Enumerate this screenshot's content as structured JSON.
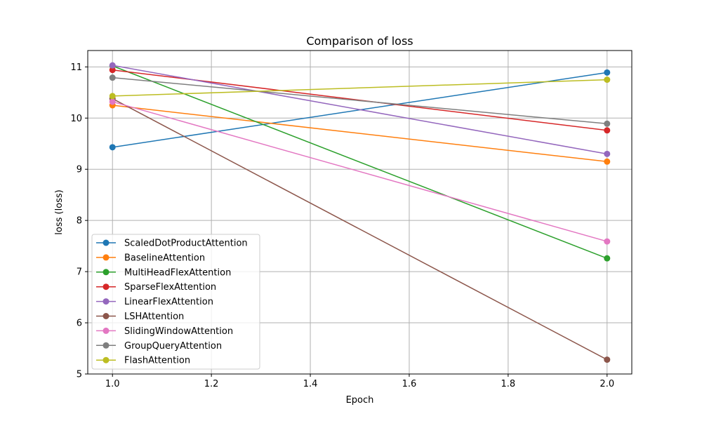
{
  "chart_data": {
    "type": "line",
    "title": "Comparison of loss",
    "xlabel": "Epoch",
    "ylabel": "loss (loss)",
    "x": [
      1.0,
      2.0
    ],
    "xlim": [
      0.95,
      2.05
    ],
    "ylim": [
      5.0,
      11.32
    ],
    "xticks": [
      1.0,
      1.2,
      1.4,
      1.6,
      1.8,
      2.0
    ],
    "xtick_labels": [
      "1.0",
      "1.2",
      "1.4",
      "1.6",
      "1.8",
      "2.0"
    ],
    "yticks": [
      5,
      6,
      7,
      8,
      9,
      10,
      11
    ],
    "ytick_labels": [
      "5",
      "6",
      "7",
      "8",
      "9",
      "10",
      "11"
    ],
    "grid": true,
    "legend_position": "lower-left",
    "series": [
      {
        "name": "ScaledDotProductAttention",
        "color": "#1f77b4",
        "values": [
          9.43,
          10.89
        ]
      },
      {
        "name": "BaselineAttention",
        "color": "#ff7f0e",
        "values": [
          10.25,
          9.15
        ]
      },
      {
        "name": "MultiHeadFlexAttention",
        "color": "#2ca02c",
        "values": [
          11.02,
          7.26
        ]
      },
      {
        "name": "SparseFlexAttention",
        "color": "#d62728",
        "values": [
          10.94,
          9.76
        ]
      },
      {
        "name": "LinearFlexAttention",
        "color": "#9467bd",
        "values": [
          11.03,
          9.3
        ]
      },
      {
        "name": "LSHAttention",
        "color": "#8c564b",
        "values": [
          10.38,
          5.28
        ]
      },
      {
        "name": "SlidingWindowAttention",
        "color": "#e377c2",
        "values": [
          10.32,
          7.59
        ]
      },
      {
        "name": "GroupQueryAttention",
        "color": "#7f7f7f",
        "values": [
          10.79,
          9.89
        ]
      },
      {
        "name": "FlashAttention",
        "color": "#bcbd22",
        "values": [
          10.43,
          10.75
        ]
      }
    ]
  }
}
